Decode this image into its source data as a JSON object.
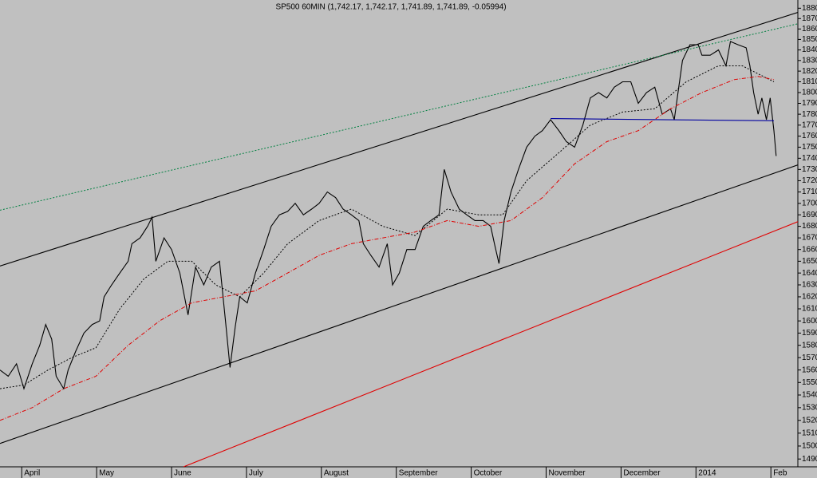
{
  "chart_data": {
    "type": "line",
    "title": "SP500 60MIN (1,742.17, 1,742.17, 1,741.89, 1,741.89, -0.05994)",
    "log_scale": true,
    "xlim": [
      -0.29,
      10.36
    ],
    "xticks": [
      {
        "value": 0,
        "label": "April"
      },
      {
        "value": 1,
        "label": "May"
      },
      {
        "value": 2,
        "label": "June"
      },
      {
        "value": 3,
        "label": "July"
      },
      {
        "value": 4,
        "label": "August"
      },
      {
        "value": 5,
        "label": "September"
      },
      {
        "value": 6,
        "label": "October"
      },
      {
        "value": 7,
        "label": "November"
      },
      {
        "value": 8,
        "label": "December"
      },
      {
        "value": 9,
        "label": "2014"
      },
      {
        "value": 10,
        "label": "Feb"
      }
    ],
    "ylim": [
      1484,
      1888
    ],
    "yticks": [
      1490,
      1500,
      1510,
      1520,
      1530,
      1540,
      1550,
      1560,
      1570,
      1580,
      1590,
      1600,
      1610,
      1620,
      1630,
      1640,
      1650,
      1660,
      1670,
      1680,
      1690,
      1700,
      1710,
      1720,
      1730,
      1740,
      1750,
      1760,
      1770,
      1780,
      1790,
      1800,
      1810,
      1820,
      1830,
      1840,
      1850,
      1860,
      1870,
      1880
    ],
    "series": [
      {
        "color": "#000000",
        "style": "solid",
        "x": [
          -0.29,
          -0.18,
          -0.07,
          0.03,
          0.14,
          0.24,
          0.32,
          0.4,
          0.46,
          0.56,
          0.62,
          0.72,
          0.83,
          0.94,
          1.04,
          1.1,
          1.2,
          1.31,
          1.42,
          1.47,
          1.58,
          1.68,
          1.74,
          1.79,
          1.9,
          2.0,
          2.11,
          2.22,
          2.32,
          2.43,
          2.53,
          2.64,
          2.72,
          2.78,
          2.85,
          2.91,
          3.01,
          3.12,
          3.23,
          3.33,
          3.44,
          3.55,
          3.65,
          3.76,
          3.87,
          3.97,
          4.08,
          4.19,
          4.29,
          4.4,
          4.5,
          4.56,
          4.66,
          4.77,
          4.88,
          4.95,
          5.04,
          5.14,
          5.25,
          5.36,
          5.46,
          5.57,
          5.64,
          5.73,
          5.84,
          5.94,
          6.05,
          6.16,
          6.26,
          6.31,
          6.37,
          6.44,
          6.53,
          6.63,
          6.74,
          6.85,
          6.95,
          7.06,
          7.17,
          7.27,
          7.38,
          7.49,
          7.59,
          7.7,
          7.81,
          7.91,
          8.02,
          8.13,
          8.23,
          8.34,
          8.45,
          8.55,
          8.66,
          8.71,
          8.76,
          8.82,
          8.92,
          9.03,
          9.08,
          9.19,
          9.3,
          9.4,
          9.46,
          9.56,
          9.67,
          9.72,
          9.77,
          9.83,
          9.88,
          9.94,
          9.99,
          10.04,
          10.07
        ],
        "values": [
          1560,
          1555,
          1565,
          1545,
          1565,
          1580,
          1597,
          1585,
          1555,
          1545,
          1560,
          1575,
          1590,
          1597,
          1600,
          1620,
          1630,
          1640,
          1650,
          1665,
          1670,
          1680,
          1688,
          1650,
          1670,
          1660,
          1640,
          1605,
          1645,
          1630,
          1645,
          1650,
          1600,
          1562,
          1595,
          1620,
          1615,
          1640,
          1660,
          1680,
          1690,
          1693,
          1700,
          1690,
          1695,
          1700,
          1710,
          1705,
          1695,
          1690,
          1685,
          1665,
          1655,
          1645,
          1665,
          1630,
          1640,
          1660,
          1660,
          1680,
          1685,
          1690,
          1730,
          1710,
          1695,
          1690,
          1685,
          1685,
          1680,
          1665,
          1648,
          1685,
          1710,
          1730,
          1750,
          1760,
          1765,
          1775,
          1765,
          1755,
          1750,
          1770,
          1795,
          1800,
          1795,
          1805,
          1810,
          1810,
          1790,
          1800,
          1805,
          1780,
          1785,
          1775,
          1800,
          1830,
          1845,
          1845,
          1835,
          1835,
          1840,
          1825,
          1848,
          1845,
          1842,
          1825,
          1800,
          1780,
          1795,
          1775,
          1795,
          1765,
          1742
        ]
      },
      {
        "color": "#000000",
        "style": "dotted",
        "x": [
          -0.29,
          0.03,
          0.35,
          0.67,
          0.99,
          1.31,
          1.63,
          1.95,
          2.27,
          2.59,
          2.91,
          3.23,
          3.55,
          3.97,
          4.4,
          4.82,
          5.25,
          5.68,
          6.1,
          6.42,
          6.74,
          7.17,
          7.59,
          8.02,
          8.45,
          8.87,
          9.3,
          9.62,
          10.04
        ],
        "values": [
          1545,
          1548,
          1560,
          1570,
          1578,
          1610,
          1635,
          1650,
          1650,
          1630,
          1620,
          1640,
          1665,
          1685,
          1695,
          1680,
          1672,
          1695,
          1690,
          1690,
          1720,
          1745,
          1770,
          1782,
          1785,
          1810,
          1825,
          1825,
          1810
        ]
      },
      {
        "color": "#e00000",
        "style": "dashdot",
        "x": [
          -0.29,
          0.14,
          0.56,
          0.99,
          1.42,
          1.84,
          2.27,
          2.69,
          3.12,
          3.55,
          3.97,
          4.4,
          4.82,
          5.25,
          5.68,
          6.1,
          6.53,
          6.95,
          7.38,
          7.81,
          8.23,
          8.66,
          9.08,
          9.51,
          9.83,
          10.04
        ],
        "values": [
          1520,
          1530,
          1545,
          1555,
          1580,
          1600,
          1615,
          1620,
          1625,
          1640,
          1655,
          1665,
          1670,
          1675,
          1685,
          1680,
          1685,
          1705,
          1735,
          1755,
          1765,
          1785,
          1800,
          1812,
          1815,
          1812
        ]
      },
      {
        "color": "#000000",
        "style": "solid",
        "x": [
          -0.29,
          10.36
        ],
        "values": [
          1646,
          1876
        ]
      },
      {
        "color": "#008040",
        "style": "dotted",
        "x": [
          -0.29,
          10.36
        ],
        "values": [
          1694,
          1865
        ]
      },
      {
        "color": "#000000",
        "style": "solid",
        "x": [
          -0.29,
          10.36
        ],
        "values": [
          1502,
          1734
        ]
      },
      {
        "color": "#e00000",
        "style": "solid",
        "x": [
          2.16,
          10.36
        ],
        "values": [
          1484,
          1684
        ]
      },
      {
        "color": "#0000a0",
        "style": "solid",
        "x": [
          7.06,
          10.04
        ],
        "values": [
          1776,
          1774
        ]
      }
    ]
  }
}
